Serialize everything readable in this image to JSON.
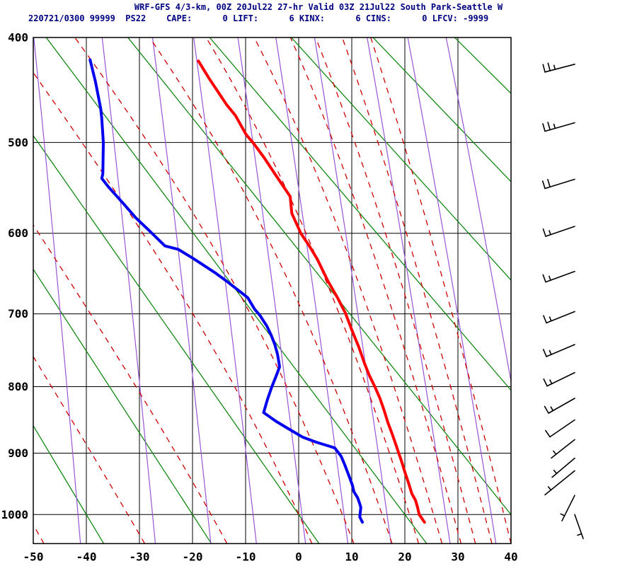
{
  "chart_data": {
    "type": "stuve_thermodynamic_sounding",
    "title": "WRF-GFS 4/3-km, 00Z 20Jul22 27-hr Valid 03Z 21Jul22 South Park-Seattle W",
    "station_line": "220721/0300 99999  PS22    CAPE:      0 LIFT:      6 KINX:      6 CINS:      0 LFCV: -9999",
    "indices": {
      "station_time": "220721/0300",
      "station_number": "99999",
      "model_id": "PS22",
      "cape": "0",
      "lift": "6",
      "kinx": "6",
      "cins": "0",
      "lfcv": "-9999"
    },
    "x_axis": {
      "label": "temperature_deg_c",
      "min": -50,
      "max": 40,
      "ticks": [
        -50,
        -40,
        -30,
        -20,
        -10,
        0,
        10,
        20,
        30,
        40
      ]
    },
    "y_axis": {
      "label": "pressure_hpa",
      "top": 400,
      "bottom": 1050,
      "ticks": [
        400,
        500,
        600,
        700,
        800,
        900,
        1000
      ],
      "scale": "stuve p^0.2859, grid on"
    },
    "series": {
      "temperature_c_by_hpa": [
        [
          421,
          -18.9
        ],
        [
          437,
          -16.9
        ],
        [
          462,
          -13.6
        ],
        [
          473,
          -11.9
        ],
        [
          492,
          -9.9
        ],
        [
          501,
          -8.5
        ],
        [
          516,
          -6.5
        ],
        [
          533,
          -4.5
        ],
        [
          558,
          -1.6
        ],
        [
          577,
          -1.3
        ],
        [
          600,
          0.4
        ],
        [
          615,
          2.0
        ],
        [
          631,
          3.5
        ],
        [
          658,
          5.5
        ],
        [
          679,
          7.3
        ],
        [
          699,
          8.8
        ],
        [
          723,
          10.1
        ],
        [
          744,
          11.3
        ],
        [
          767,
          12.4
        ],
        [
          784,
          13.3
        ],
        [
          801,
          14.4
        ],
        [
          817,
          15.3
        ],
        [
          835,
          16.1
        ],
        [
          853,
          16.8
        ],
        [
          870,
          17.6
        ],
        [
          889,
          18.4
        ],
        [
          899,
          18.8
        ],
        [
          911,
          19.3
        ],
        [
          930,
          20.0
        ],
        [
          948,
          20.7
        ],
        [
          965,
          21.3
        ],
        [
          976,
          22.0
        ],
        [
          988,
          22.4
        ],
        [
          1000,
          22.7
        ],
        [
          1013,
          23.7
        ]
      ],
      "dewpoint_c_by_hpa": [
        [
          420,
          -39.3
        ],
        [
          440,
          -38.3
        ],
        [
          466,
          -37.3
        ],
        [
          476,
          -37.1
        ],
        [
          500,
          -36.8
        ],
        [
          533,
          -36.9
        ],
        [
          538,
          -37.1
        ],
        [
          547,
          -35.9
        ],
        [
          568,
          -32.7
        ],
        [
          582,
          -30.7
        ],
        [
          596,
          -28.3
        ],
        [
          615,
          -25.2
        ],
        [
          619,
          -22.7
        ],
        [
          630,
          -19.9
        ],
        [
          647,
          -15.9
        ],
        [
          658,
          -13.6
        ],
        [
          670,
          -11.3
        ],
        [
          679,
          -9.6
        ],
        [
          694,
          -8.3
        ],
        [
          702,
          -7.3
        ],
        [
          716,
          -6.0
        ],
        [
          728,
          -5.2
        ],
        [
          741,
          -4.5
        ],
        [
          754,
          -4.0
        ],
        [
          767,
          -3.7
        ],
        [
          772,
          -3.6
        ],
        [
          784,
          -4.2
        ],
        [
          801,
          -5.1
        ],
        [
          819,
          -5.9
        ],
        [
          838,
          -6.6
        ],
        [
          851,
          -4.3
        ],
        [
          864,
          -1.6
        ],
        [
          875,
          0.7
        ],
        [
          883,
          3.3
        ],
        [
          889,
          5.7
        ],
        [
          892,
          6.8
        ],
        [
          905,
          8.0
        ],
        [
          919,
          8.7
        ],
        [
          937,
          9.5
        ],
        [
          951,
          10.1
        ],
        [
          962,
          10.4
        ],
        [
          972,
          11.1
        ],
        [
          982,
          11.5
        ],
        [
          988,
          11.7
        ],
        [
          1004,
          11.5
        ],
        [
          1013,
          12.0
        ]
      ]
    },
    "reference_lines": {
      "dry_adiabats_theta_c": [
        -40,
        -20,
        0,
        20,
        40,
        60,
        80,
        100,
        120
      ],
      "moist_adiabats_start_c_at_1050": [
        -48,
        -29,
        -13.5,
        2.5,
        10.4,
        17.6,
        22.6,
        27,
        30.6,
        33.3,
        36.4,
        40
      ],
      "mixing_ratio_g_kg": [
        0.1,
        0.4,
        1,
        2,
        4,
        7,
        12,
        24,
        40,
        64
      ]
    },
    "wind_barbs": {
      "station_x": 812,
      "list": [
        {
          "p": 424,
          "kt": 25,
          "tail": [
            -42,
            11
          ]
        },
        {
          "p": 480,
          "kt": 25,
          "tail": [
            -42,
            12
          ]
        },
        {
          "p": 539,
          "kt": 20,
          "tail": [
            -42,
            13
          ]
        },
        {
          "p": 592,
          "kt": 15,
          "tail": [
            -41,
            14
          ]
        },
        {
          "p": 646,
          "kt": 15,
          "tail": [
            -41,
            15
          ]
        },
        {
          "p": 697,
          "kt": 15,
          "tail": [
            -40,
            16
          ]
        },
        {
          "p": 741,
          "kt": 15,
          "tail": [
            -40,
            17
          ]
        },
        {
          "p": 780,
          "kt": 15,
          "tail": [
            -39,
            19
          ]
        },
        {
          "p": 817,
          "kt": 15,
          "tail": [
            -37,
            21
          ]
        },
        {
          "p": 849,
          "kt": 10,
          "tail": [
            -35,
            24
          ]
        },
        {
          "p": 879,
          "kt": 5,
          "tail": [
            -33,
            26
          ]
        },
        {
          "p": 908,
          "kt": 5,
          "tail": [
            -32,
            27
          ]
        },
        {
          "p": 928,
          "kt": 5,
          "tail": [
            -42,
            34
          ]
        },
        {
          "p": 968,
          "kt": 5,
          "tail": [
            -18,
            36
          ]
        },
        {
          "p": 1000,
          "kt": 5,
          "tail": [
            12,
            34
          ]
        }
      ]
    },
    "colors": {
      "temperature": "#ff0000",
      "dewpoint": "#0000ee",
      "dry_adiabat": "#008000",
      "moist_adiabat": "#cc0000",
      "mixing_ratio": "#9955d4",
      "grid": "#000000",
      "title_text": "#000080",
      "axis_text": "#000000",
      "background": "#ffffff"
    },
    "legend": "none"
  }
}
